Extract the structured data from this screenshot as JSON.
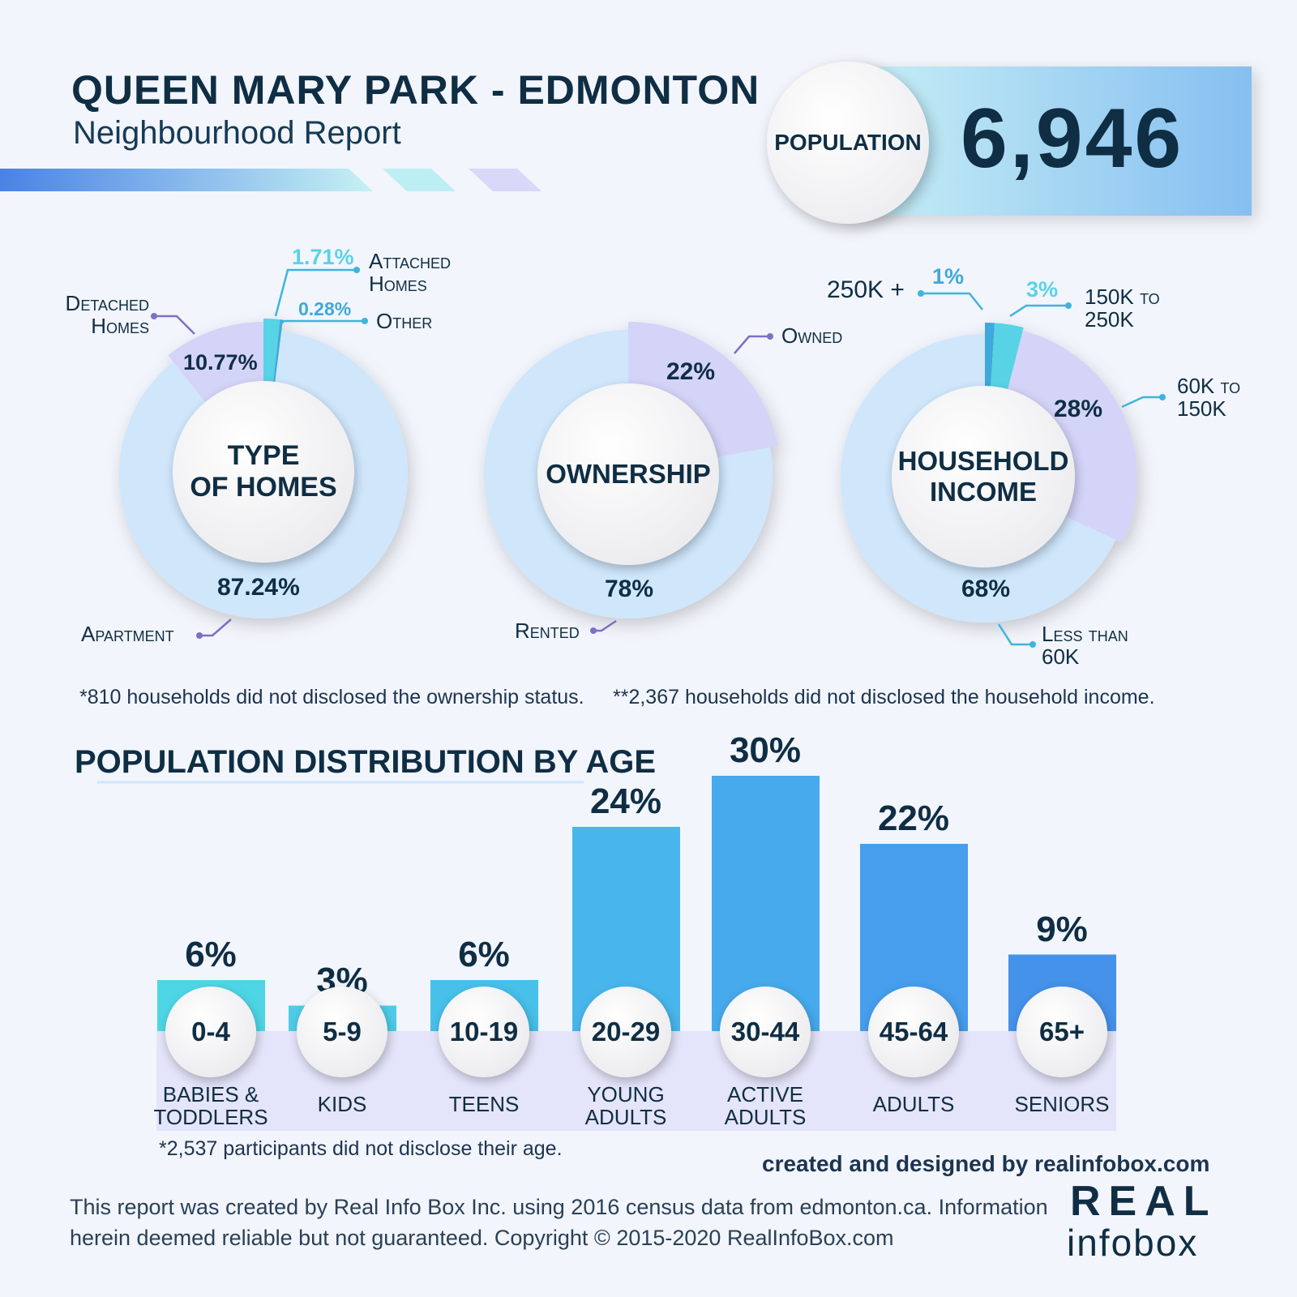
{
  "header": {
    "title": "QUEEN MARY PARK - EDMONTON",
    "subtitle": "Neighbourhood Report",
    "population_label": "POPULATION",
    "population_value": "6,946"
  },
  "colors": {
    "light": "#cfe6fb",
    "purple": "#d4d3f8",
    "cyan": "#58d3e6",
    "blue": "#3fa8dc",
    "navy": "#0f2e44"
  },
  "chart_data": [
    {
      "type": "pie",
      "title": "TYPE OF HOMES",
      "center": [
        "TYPE",
        "OF HOMES"
      ],
      "slices": [
        {
          "name": "Attached Homes",
          "value": 1.71,
          "label": "1.71%",
          "color": "#58d3e6"
        },
        {
          "name": "Other",
          "value": 0.28,
          "label": "0.28%",
          "color": "#3fa8dc"
        },
        {
          "name": "Apartment",
          "value": 87.24,
          "label": "87.24%",
          "color": "#cfe6fb"
        },
        {
          "name": "Detached Homes",
          "value": 10.77,
          "label": "10.77%",
          "color": "#d4d3f8"
        }
      ]
    },
    {
      "type": "pie",
      "title": "OWNERSHIP",
      "center": [
        "OWNERSHIP"
      ],
      "slices": [
        {
          "name": "Owned",
          "value": 22,
          "label": "22%",
          "color": "#d4d3f8"
        },
        {
          "name": "Rented",
          "value": 78,
          "label": "78%",
          "color": "#cfe6fb"
        }
      ]
    },
    {
      "type": "pie",
      "title": "HOUSEHOLD INCOME",
      "center": [
        "HOUSEHOLD",
        "INCOME"
      ],
      "slices": [
        {
          "name": "250K +",
          "value": 1,
          "label": "1%",
          "color": "#3fa8dc"
        },
        {
          "name": "150K to 250K",
          "value": 3,
          "label": "3%",
          "color": "#58d3e6"
        },
        {
          "name": "60K to 150K",
          "value": 28,
          "label": "28%",
          "color": "#d4d3f8"
        },
        {
          "name": "Less than 60K",
          "value": 68,
          "label": "68%",
          "color": "#cfe6fb"
        }
      ]
    },
    {
      "type": "bar",
      "title": "POPULATION DISTRIBUTION BY AGE",
      "unit": "%",
      "ylim": [
        0,
        30
      ],
      "categories": [
        "0-4",
        "5-9",
        "10-19",
        "20-29",
        "30-44",
        "45-64",
        "65+"
      ],
      "groups": [
        "BABIES & TODDLERS",
        "KIDS",
        "TEENS",
        "YOUNG ADULTS",
        "ACTIVE ADULTS",
        "ADULTS",
        "SENIORS"
      ],
      "values": [
        6,
        3,
        6,
        24,
        30,
        22,
        9
      ],
      "labels": [
        "6%",
        "3%",
        "6%",
        "24%",
        "30%",
        "22%",
        "9%"
      ]
    }
  ],
  "legend": {
    "detached": "Detached Homes",
    "attached": "Attached Homes",
    "other": "Other",
    "apartment": "Apartment",
    "owned": "Owned",
    "rented": "Rented",
    "inc250": "250K +",
    "inc150": "150K to 250K",
    "inc60": "60K to 150K",
    "inclt60": "Less than 60K"
  },
  "notes": {
    "ownership": "*810 households did not disclosed the ownership status.",
    "income": "**2,367 households did not disclosed the household income.",
    "age": "*2,537 participants did not disclose their age."
  },
  "footer": {
    "credit": "created and designed by realinfobox.com",
    "disclaimer1": "This report was created by Real Info Box Inc. using 2016 census data from edmonton.ca. Information",
    "disclaimer2": "herein deemed reliable but not guaranteed. Copyright © 2015-2020 RealInfoBox.com",
    "logo_top": "REAL",
    "logo_bottom": "infobox"
  }
}
